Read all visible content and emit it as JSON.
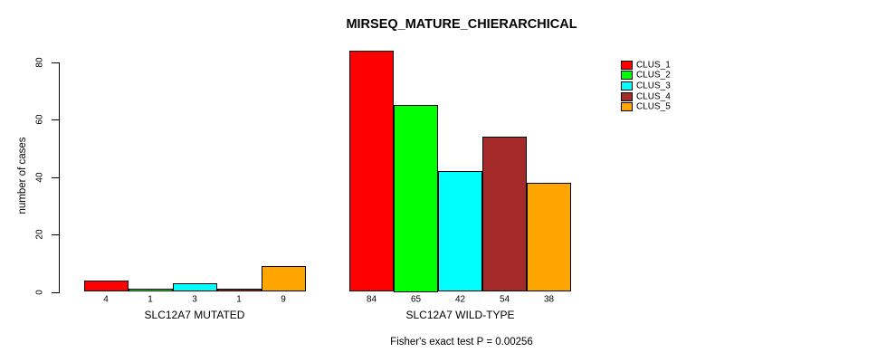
{
  "chart_data": {
    "type": "bar",
    "title": "MIRSEQ_MATURE_CHIERARCHICAL",
    "ylabel": "number of cases",
    "xlabel": "",
    "footnote": "Fisher's exact test P = 0.00256",
    "ylim": [
      0,
      84
    ],
    "yticks": [
      0,
      20,
      40,
      60,
      80
    ],
    "grid": false,
    "legend_position": "right",
    "background": "#FFFFFF",
    "axis_color": "#000000",
    "bar_border_color": "#000000",
    "categories": [
      "SLC12A7 MUTATED",
      "SLC12A7 WILD-TYPE"
    ],
    "series": [
      {
        "name": "CLUS_1",
        "color": "#FF0000",
        "values": [
          4,
          84
        ]
      },
      {
        "name": "CLUS_2",
        "color": "#00FF00",
        "values": [
          1,
          65
        ]
      },
      {
        "name": "CLUS_3",
        "color": "#00FFFF",
        "values": [
          3,
          42
        ]
      },
      {
        "name": "CLUS_4",
        "color": "#A52A2A",
        "values": [
          1,
          54
        ]
      },
      {
        "name": "CLUS_5",
        "color": "#FFA500",
        "values": [
          9,
          38
        ]
      }
    ],
    "groups": [
      {
        "label": "SLC12A7 MUTATED",
        "values": [
          4,
          1,
          3,
          1,
          9
        ]
      },
      {
        "label": "SLC12A7 WILD-TYPE",
        "values": [
          84,
          65,
          42,
          54,
          38
        ]
      }
    ],
    "bar_value_labels_shown": true
  }
}
